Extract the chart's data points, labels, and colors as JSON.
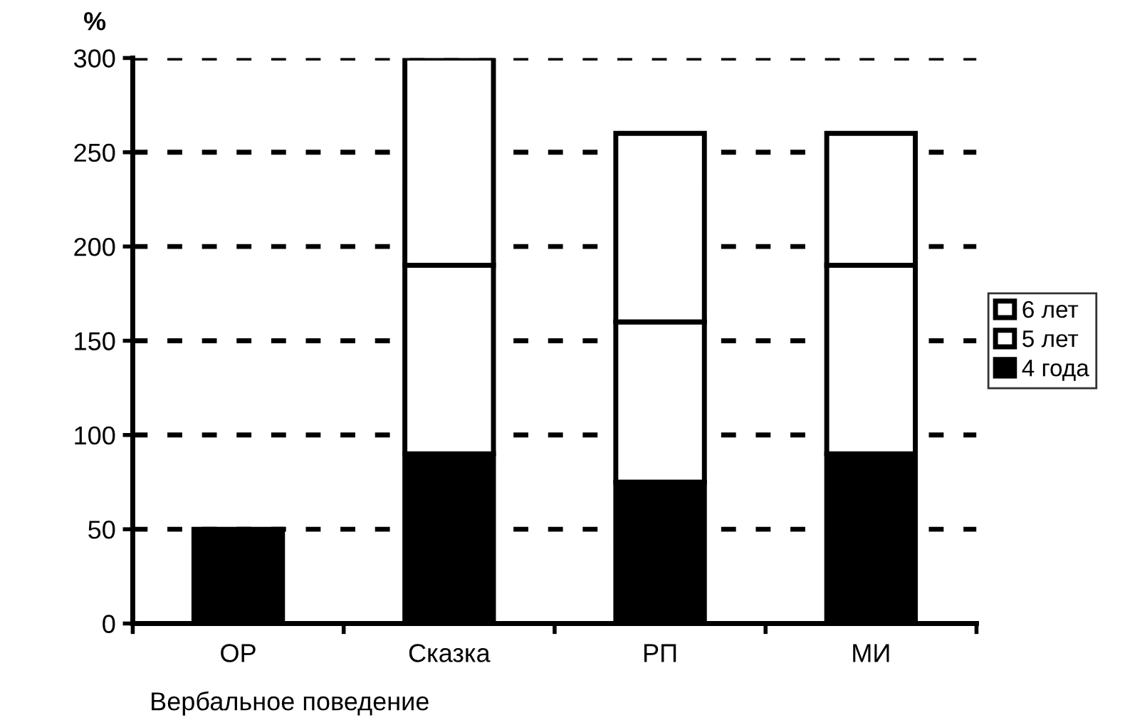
{
  "chart_data": {
    "type": "bar",
    "stacked": true,
    "ylabel": "%",
    "xlabel": "Вербальное поведение",
    "categories": [
      "ОР",
      "Сказка",
      "РП",
      "МИ"
    ],
    "series": [
      {
        "name": "4 года",
        "color": "#000000",
        "values": [
          50,
          90,
          75,
          90
        ]
      },
      {
        "name": "5 лет",
        "color": "#ffffff",
        "values": [
          null,
          100,
          85,
          100
        ]
      },
      {
        "name": "6 лет",
        "color": "#ffffff",
        "values": [
          null,
          110,
          100,
          70
        ]
      }
    ],
    "ylim": [
      0,
      300
    ],
    "yticks": [
      0,
      50,
      100,
      150,
      200,
      250,
      300
    ],
    "grid": "y",
    "legend": "right"
  }
}
